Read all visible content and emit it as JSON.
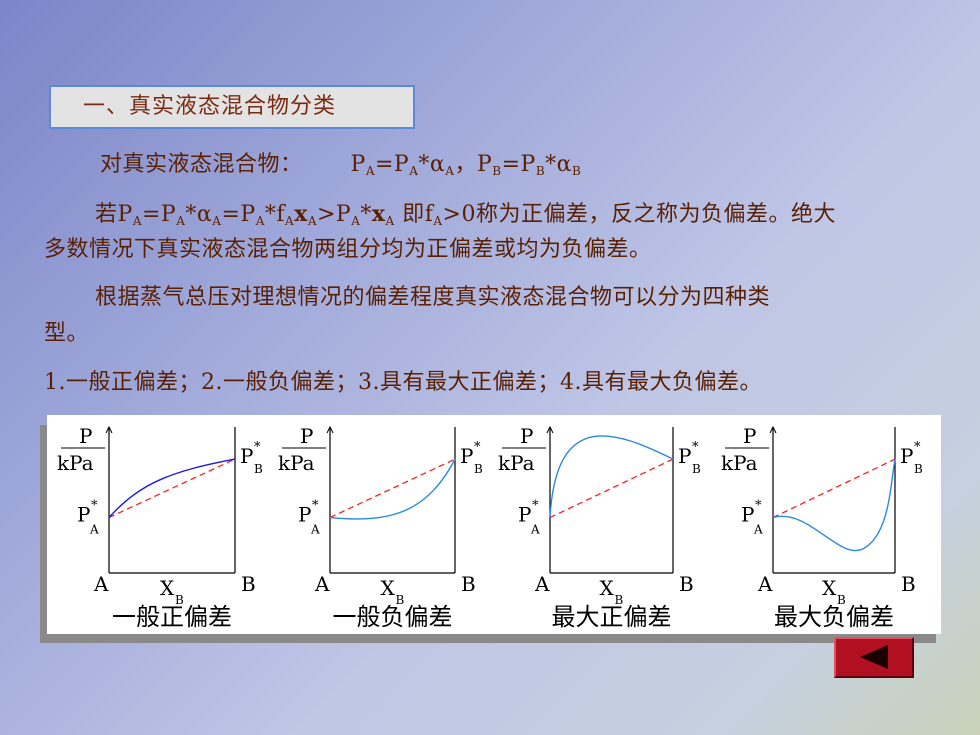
{
  "heading": "一、真实液态混合物分类",
  "para1_label": "对真实液态混合物：",
  "para2": {
    "prefix": "若",
    "text1": "即f",
    "text2": ">0称为正偏差，反之称为负偏差。绝大",
    "line2": "多数情况下真实液态混合物两组分均为正偏差或均为负偏差。"
  },
  "para3": {
    "line1": "根据蒸气总压对理想情况的偏差程度真实液态混合物可以分为四种类",
    "line2": "型。"
  },
  "list_line": "1.一般正偏差；2.一般负偏差；3.具有最大正偏差；4.具有最大负偏差。",
  "figure": {
    "y_label_top": "P",
    "y_label_bottom": "kPa",
    "x_label": "X",
    "x_label_sub": "B",
    "left_end": "A",
    "right_end": "B",
    "pa_label": "P",
    "pa_sub": "A",
    "pb_label": "P",
    "pb_sub": "B",
    "star": "*",
    "panels": [
      {
        "caption": "一般正偏差",
        "deviation": "positive",
        "pa_level": 0.38,
        "pb_level": 0.78,
        "curve_color": "#1a1adc"
      },
      {
        "caption": "一般负偏差",
        "deviation": "negative",
        "pa_level": 0.38,
        "pb_level": 0.78,
        "curve_color": "#2a8ae0"
      },
      {
        "caption": "最大正偏差",
        "deviation": "maximum",
        "pa_level": 0.38,
        "pb_level": 0.78,
        "curve_color": "#2a8ae0"
      },
      {
        "caption": "最大负偏差",
        "deviation": "minimum",
        "pa_level": 0.38,
        "pb_level": 0.78,
        "curve_color": "#2a8ae0"
      }
    ],
    "ideal_line_color": "#ff2020"
  },
  "colors": {
    "text": "#5a2004",
    "heading_text": "#7a2a10",
    "button": "#b01020"
  },
  "nav": {
    "back_icon": "triangle-left-icon"
  }
}
